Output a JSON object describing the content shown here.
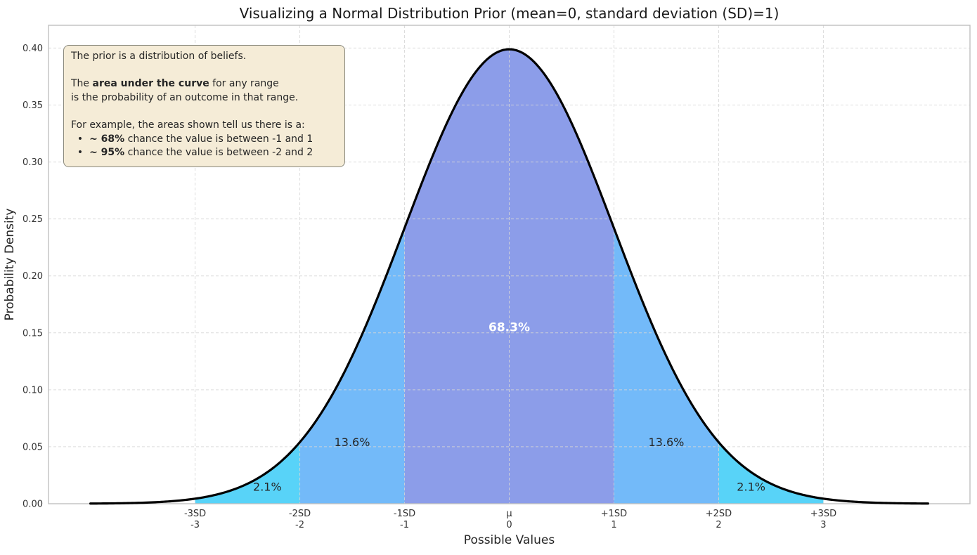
{
  "chart_data": {
    "type": "area",
    "title": "Visualizing a Normal Distribution Prior (mean=0, standard deviation (SD)=1)",
    "xlabel": "Possible Values",
    "ylabel": "Probability Density",
    "distribution": {
      "name": "normal",
      "mean": 0,
      "sd": 1,
      "peak_density": 0.3989
    },
    "xlim": [
      -4.4,
      4.4
    ],
    "ylim": [
      0,
      0.42
    ],
    "grid": true,
    "curve": {
      "x_from": -4,
      "x_to": 4,
      "color": "#000000",
      "width": 3.2
    },
    "x_ticks": [
      {
        "x": -3,
        "sd_label": "-3SD",
        "value_label": "-3"
      },
      {
        "x": -2,
        "sd_label": "-2SD",
        "value_label": "-2"
      },
      {
        "x": -1,
        "sd_label": "-1SD",
        "value_label": "-1"
      },
      {
        "x": 0,
        "sd_label": "μ",
        "value_label": "0"
      },
      {
        "x": 1,
        "sd_label": "+1SD",
        "value_label": "1"
      },
      {
        "x": 2,
        "sd_label": "+2SD",
        "value_label": "2"
      },
      {
        "x": 3,
        "sd_label": "+3SD",
        "value_label": "3"
      }
    ],
    "y_ticks": [
      {
        "y": 0.0,
        "label": "0.00"
      },
      {
        "y": 0.05,
        "label": "0.05"
      },
      {
        "y": 0.1,
        "label": "0.10"
      },
      {
        "y": 0.15,
        "label": "0.15"
      },
      {
        "y": 0.2,
        "label": "0.20"
      },
      {
        "y": 0.25,
        "label": "0.25"
      },
      {
        "y": 0.3,
        "label": "0.30"
      },
      {
        "y": 0.35,
        "label": "0.35"
      },
      {
        "y": 0.4,
        "label": "0.40"
      }
    ],
    "regions": [
      {
        "x_from": -3,
        "x_to": -2,
        "fill": "#58d3f8",
        "label": "2.1%",
        "label_x": -2.31,
        "label_y": 0.015,
        "label_color": "#262626",
        "label_bold": false,
        "label_size": 16
      },
      {
        "x_from": -2,
        "x_to": -1,
        "fill": "#73baf9",
        "label": "13.6%",
        "label_x": -1.5,
        "label_y": 0.054,
        "label_color": "#262626",
        "label_bold": false,
        "label_size": 16
      },
      {
        "x_from": -1,
        "x_to": 1,
        "fill": "#8c9de9",
        "label": "68.3%",
        "label_x": 0,
        "label_y": 0.155,
        "label_color": "#ffffff",
        "label_bold": true,
        "label_size": 17
      },
      {
        "x_from": 1,
        "x_to": 2,
        "fill": "#73baf9",
        "label": "13.6%",
        "label_x": 1.5,
        "label_y": 0.054,
        "label_color": "#262626",
        "label_bold": false,
        "label_size": 16
      },
      {
        "x_from": 2,
        "x_to": 3,
        "fill": "#58d3f8",
        "label": "2.1%",
        "label_x": 2.31,
        "label_y": 0.015,
        "label_color": "#262626",
        "label_bold": false,
        "label_size": 16
      }
    ],
    "colors": {
      "grid": "#d6d6d6",
      "spine": "#c0c0c0",
      "tick_text": "#333333",
      "axis_label_text": "#262626"
    }
  },
  "annotation_box": {
    "bg": "#f5ecd7",
    "border": "#8a897d",
    "lines": [
      {
        "segments": [
          {
            "text": "The prior is a distribution of beliefs."
          }
        ]
      },
      {
        "segments": []
      },
      {
        "segments": [
          {
            "text": "The "
          },
          {
            "text": "area under the curve",
            "bold": true
          },
          {
            "text": " for any range"
          }
        ]
      },
      {
        "segments": [
          {
            "text": "is the probability of an outcome in that range."
          }
        ]
      },
      {
        "segments": []
      },
      {
        "segments": [
          {
            "text": "For example, the areas shown tell us there is a:"
          }
        ]
      },
      {
        "segments": [
          {
            "text": "  •  "
          },
          {
            "text": "~ 68%",
            "bold": true
          },
          {
            "text": " chance the value is between -1 and 1"
          }
        ]
      },
      {
        "segments": [
          {
            "text": "  •  "
          },
          {
            "text": "~ 95%",
            "bold": true
          },
          {
            "text": " chance the value is between -2 and 2"
          }
        ]
      }
    ]
  }
}
